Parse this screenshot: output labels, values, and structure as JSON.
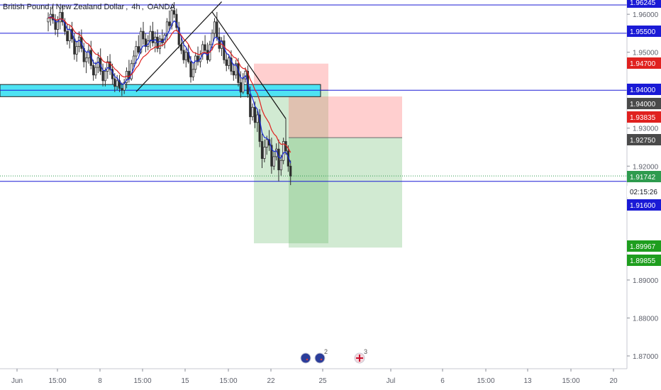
{
  "title": {
    "symbol": "British Pound / New Zealand Dollar",
    "interval": "4h",
    "exchange": "OANDA"
  },
  "colors": {
    "bull": "#2f2f2f",
    "bear": "#2f2f2f",
    "ema_fast": "#1a2bd6",
    "ema_slow": "#e0211f",
    "hline": "#1a1ad6",
    "zone": "#4ee3f3",
    "take_profit": "#4caf50",
    "stop_loss": "#ff6b6b",
    "axis_text": "#5d606b"
  },
  "chart_data": {
    "type": "candlestick",
    "y_axis": {
      "ticks": [
        "1.96000",
        "1.95000",
        "1.93000",
        "1.92000",
        "1.89000",
        "1.88000",
        "1.87000"
      ],
      "range": [
        1.8685,
        1.9632
      ]
    },
    "x_axis": {
      "ticks": [
        "Jun",
        "15:00",
        "8",
        "15:00",
        "15",
        "15:00",
        "22",
        "25",
        "Jul",
        "6",
        "15:00",
        "13",
        "15:00",
        "20"
      ]
    },
    "price_labels": [
      {
        "value": "1.96245",
        "kind": "line"
      },
      {
        "value": "1.95500",
        "kind": "line"
      },
      {
        "value": "1.94700",
        "kind": "stop"
      },
      {
        "value": "1.94000",
        "kind": "line"
      },
      {
        "value": "1.94000",
        "kind": "entry"
      },
      {
        "value": "1.93835",
        "kind": "stop"
      },
      {
        "value": "1.92750",
        "kind": "entry"
      },
      {
        "value": "1.91742",
        "kind": "last"
      },
      {
        "value": "02:15:26",
        "kind": "countdown"
      },
      {
        "value": "1.91600",
        "kind": "line"
      },
      {
        "value": "1.89967",
        "kind": "target"
      },
      {
        "value": "1.89855",
        "kind": "target"
      }
    ],
    "horizontal_lines": [
      1.96245,
      1.955,
      1.94,
      1.916
    ],
    "last_price": 1.91742,
    "zone": {
      "top": 1.9415,
      "bottom": 1.9383
    },
    "positions": [
      {
        "entry": 1.94,
        "stop": 1.947,
        "target": 1.89967
      },
      {
        "entry": 1.9275,
        "stop": 1.93835,
        "target": 1.89855
      }
    ],
    "trendlines": [
      {
        "from": {
          "bar": 37,
          "price": 1.9396
        },
        "to": {
          "bar": 73,
          "price": 1.9633
        }
      },
      {
        "from": {
          "bar": 69,
          "price": 1.9606
        },
        "to": {
          "bar": 100,
          "price": 1.9325
        }
      }
    ],
    "candles": [
      [
        1.958,
        1.9605,
        1.9555,
        1.959
      ],
      [
        1.959,
        1.962,
        1.957,
        1.96
      ],
      [
        1.96,
        1.9625,
        1.9575,
        1.9585
      ],
      [
        1.9585,
        1.96,
        1.9545,
        1.956
      ],
      [
        1.956,
        1.9595,
        1.954,
        1.958
      ],
      [
        1.958,
        1.9615,
        1.956,
        1.9605
      ],
      [
        1.9605,
        1.9625,
        1.957,
        1.958
      ],
      [
        1.958,
        1.959,
        1.9545,
        1.9555
      ],
      [
        1.9555,
        1.9575,
        1.952,
        1.953
      ],
      [
        1.953,
        1.957,
        1.951,
        1.956
      ],
      [
        1.956,
        1.958,
        1.9525,
        1.9535
      ],
      [
        1.9535,
        1.955,
        1.948,
        1.9495
      ],
      [
        1.9495,
        1.953,
        1.9475,
        1.9515
      ],
      [
        1.9515,
        1.9555,
        1.95,
        1.954
      ],
      [
        1.954,
        1.956,
        1.95,
        1.951
      ],
      [
        1.951,
        1.9525,
        1.946,
        1.9475
      ],
      [
        1.9475,
        1.95,
        1.9445,
        1.9485
      ],
      [
        1.9485,
        1.952,
        1.947,
        1.9505
      ],
      [
        1.9505,
        1.953,
        1.9455,
        1.9465
      ],
      [
        1.9465,
        1.948,
        1.9425,
        1.944
      ],
      [
        1.944,
        1.9475,
        1.943,
        1.946
      ],
      [
        1.946,
        1.95,
        1.9445,
        1.9485
      ],
      [
        1.9485,
        1.951,
        1.944,
        1.945
      ],
      [
        1.945,
        1.947,
        1.941,
        1.9425
      ],
      [
        1.9425,
        1.946,
        1.941,
        1.945
      ],
      [
        1.945,
        1.949,
        1.943,
        1.9475
      ],
      [
        1.9475,
        1.9495,
        1.944,
        1.9455
      ],
      [
        1.9455,
        1.947,
        1.9415,
        1.943
      ],
      [
        1.943,
        1.9445,
        1.9395,
        1.941
      ],
      [
        1.941,
        1.944,
        1.94,
        1.9425
      ],
      [
        1.9425,
        1.944,
        1.9395,
        1.9405
      ],
      [
        1.9405,
        1.942,
        1.9385,
        1.94
      ],
      [
        1.94,
        1.943,
        1.939,
        1.942
      ],
      [
        1.942,
        1.946,
        1.9405,
        1.945
      ],
      [
        1.945,
        1.948,
        1.942,
        1.943
      ],
      [
        1.943,
        1.948,
        1.9425,
        1.947
      ],
      [
        1.947,
        1.9505,
        1.9455,
        1.949
      ],
      [
        1.949,
        1.953,
        1.947,
        1.9515
      ],
      [
        1.9515,
        1.9545,
        1.9495,
        1.95
      ],
      [
        1.95,
        1.9565,
        1.9495,
        1.9555
      ],
      [
        1.9555,
        1.958,
        1.952,
        1.9535
      ],
      [
        1.9535,
        1.955,
        1.95,
        1.9515
      ],
      [
        1.9515,
        1.9545,
        1.9505,
        1.953
      ],
      [
        1.953,
        1.957,
        1.951,
        1.9555
      ],
      [
        1.9555,
        1.958,
        1.9515,
        1.9525
      ],
      [
        1.9525,
        1.9555,
        1.95,
        1.954
      ],
      [
        1.954,
        1.956,
        1.95,
        1.951
      ],
      [
        1.951,
        1.9545,
        1.9495,
        1.9535
      ],
      [
        1.9535,
        1.956,
        1.9515,
        1.9525
      ],
      [
        1.9525,
        1.955,
        1.951,
        1.9545
      ],
      [
        1.9545,
        1.959,
        1.953,
        1.958
      ],
      [
        1.958,
        1.961,
        1.9555,
        1.957
      ],
      [
        1.957,
        1.962,
        1.956,
        1.961
      ],
      [
        1.961,
        1.9632,
        1.959,
        1.96
      ],
      [
        1.96,
        1.9615,
        1.9555,
        1.9565
      ],
      [
        1.9565,
        1.958,
        1.951,
        1.952
      ],
      [
        1.952,
        1.954,
        1.9495,
        1.9505
      ],
      [
        1.9505,
        1.9525,
        1.947,
        1.948
      ],
      [
        1.948,
        1.951,
        1.946,
        1.95
      ],
      [
        1.95,
        1.952,
        1.947,
        1.9475
      ],
      [
        1.9475,
        1.949,
        1.942,
        1.9435
      ],
      [
        1.9435,
        1.947,
        1.9425,
        1.9455
      ],
      [
        1.9455,
        1.95,
        1.9445,
        1.949
      ],
      [
        1.949,
        1.9515,
        1.9465,
        1.9475
      ],
      [
        1.9475,
        1.9505,
        1.946,
        1.9495
      ],
      [
        1.9495,
        1.953,
        1.948,
        1.952
      ],
      [
        1.952,
        1.9545,
        1.9495,
        1.9505
      ],
      [
        1.9505,
        1.9525,
        1.947,
        1.948
      ],
      [
        1.948,
        1.953,
        1.9475,
        1.952
      ],
      [
        1.952,
        1.956,
        1.9505,
        1.955
      ],
      [
        1.955,
        1.959,
        1.9535,
        1.958
      ],
      [
        1.958,
        1.9606,
        1.953,
        1.954
      ],
      [
        1.954,
        1.9565,
        1.95,
        1.951
      ],
      [
        1.951,
        1.954,
        1.949,
        1.953
      ],
      [
        1.953,
        1.9545,
        1.947,
        1.948
      ],
      [
        1.948,
        1.95,
        1.945,
        1.9465
      ],
      [
        1.9465,
        1.9495,
        1.9455,
        1.9485
      ],
      [
        1.9485,
        1.9505,
        1.944,
        1.945
      ],
      [
        1.945,
        1.947,
        1.9425,
        1.944
      ],
      [
        1.944,
        1.948,
        1.943,
        1.947
      ],
      [
        1.947,
        1.9485,
        1.941,
        1.942
      ],
      [
        1.942,
        1.945,
        1.938,
        1.9395
      ],
      [
        1.9395,
        1.9445,
        1.939,
        1.943
      ],
      [
        1.943,
        1.946,
        1.942,
        1.945
      ],
      [
        1.945,
        1.9465,
        1.938,
        1.939
      ],
      [
        1.939,
        1.941,
        1.931,
        1.933
      ],
      [
        1.933,
        1.9365,
        1.932,
        1.9355
      ],
      [
        1.9355,
        1.937,
        1.93,
        1.9315
      ],
      [
        1.9315,
        1.9345,
        1.929,
        1.9335
      ],
      [
        1.9335,
        1.935,
        1.925,
        1.9265
      ],
      [
        1.9265,
        1.9285,
        1.9195,
        1.922
      ],
      [
        1.922,
        1.927,
        1.921,
        1.925
      ],
      [
        1.925,
        1.928,
        1.923,
        1.927
      ],
      [
        1.927,
        1.9295,
        1.924,
        1.9255
      ],
      [
        1.9255,
        1.9275,
        1.918,
        1.92
      ],
      [
        1.92,
        1.924,
        1.919,
        1.9225
      ],
      [
        1.9225,
        1.926,
        1.9215,
        1.9245
      ],
      [
        1.9245,
        1.927,
        1.916,
        1.919
      ],
      [
        1.919,
        1.923,
        1.9175,
        1.9215
      ],
      [
        1.9215,
        1.9275,
        1.9205,
        1.9265
      ],
      [
        1.9265,
        1.9325,
        1.923,
        1.924
      ],
      [
        1.924,
        1.9255,
        1.9185,
        1.92
      ],
      [
        1.92,
        1.9215,
        1.915,
        1.9174
      ]
    ]
  },
  "events": [
    {
      "flag": "nz",
      "count": ""
    },
    {
      "flag": "nz",
      "count": "2"
    },
    {
      "flag": "uk",
      "count": "3"
    }
  ]
}
